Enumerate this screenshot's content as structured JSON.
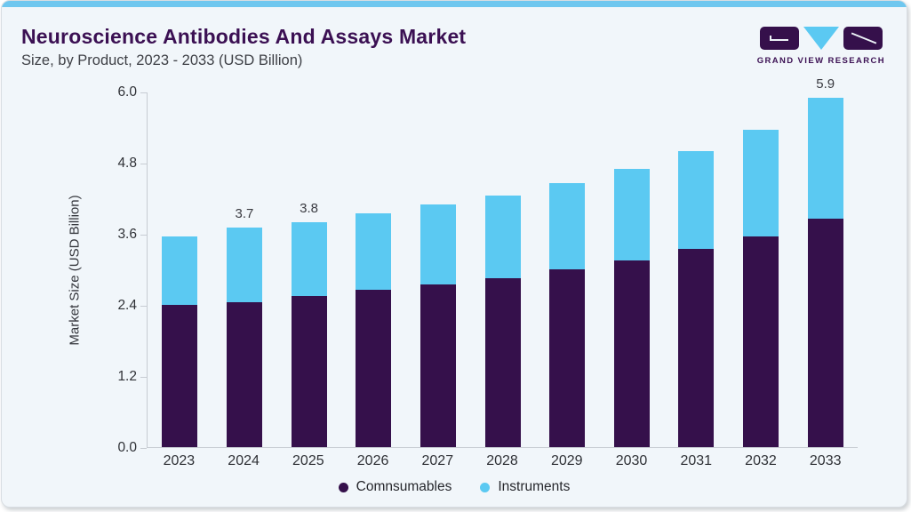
{
  "header": {
    "title": "Neuroscience Antibodies And Assays Market",
    "subtitle": "Size, by Product, 2023 - 2033 (USD Billion)",
    "logo_text": "GRAND VIEW RESEARCH"
  },
  "chart_data": {
    "type": "bar",
    "stacked": true,
    "title": "Neuroscience Antibodies And Assays Market Size, by Product, 2023 - 2033 (USD Billion)",
    "categories": [
      "2023",
      "2024",
      "2025",
      "2026",
      "2027",
      "2028",
      "2029",
      "2030",
      "2031",
      "2032",
      "2033"
    ],
    "series": [
      {
        "name": "Comnsumables",
        "color": "#35104B",
        "values": [
          2.4,
          2.45,
          2.55,
          2.65,
          2.75,
          2.85,
          3.0,
          3.15,
          3.35,
          3.55,
          3.85
        ]
      },
      {
        "name": "Instruments",
        "color": "#5BC9F2",
        "values": [
          1.15,
          1.25,
          1.25,
          1.3,
          1.35,
          1.4,
          1.45,
          1.55,
          1.65,
          1.8,
          2.05
        ]
      }
    ],
    "totals": [
      3.55,
      3.7,
      3.8,
      3.95,
      4.1,
      4.25,
      4.45,
      4.7,
      5.0,
      5.35,
      5.9
    ],
    "total_labels": [
      "",
      "3.7",
      "3.8",
      "",
      "",
      "",
      "",
      "",
      "",
      "",
      "5.9"
    ],
    "ylabel": "Market Size (USD Billion)",
    "xlabel": "",
    "ylim": [
      0,
      6.0
    ],
    "y_ticks": [
      6.0,
      4.8,
      3.6,
      2.4,
      1.2,
      0.0
    ],
    "grid": false,
    "legend_position": "bottom"
  },
  "legend": {
    "items": [
      {
        "label": "Comnsumables",
        "color": "#35104B"
      },
      {
        "label": "Instruments",
        "color": "#5BC9F2"
      }
    ]
  },
  "colors": {
    "accent_bar": "#6FC7EF",
    "card_background": "#F1F6FA",
    "title_text": "#3B1053",
    "axis_line": "#C7CCD2",
    "consumables": "#35104B",
    "instruments": "#5BC9F2"
  }
}
